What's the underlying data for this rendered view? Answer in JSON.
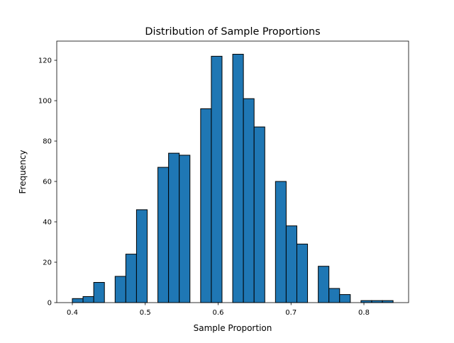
{
  "chart_data": {
    "type": "bar",
    "title": "Distribution of Sample Proportions",
    "xlabel": "Sample Proportion",
    "ylabel": "Frequency",
    "bin_start": 0.4,
    "bin_end": 0.84,
    "values": [
      2,
      3,
      10,
      0,
      13,
      24,
      46,
      0,
      67,
      74,
      73,
      0,
      96,
      122,
      0,
      123,
      101,
      87,
      0,
      60,
      38,
      29,
      0,
      18,
      7,
      4,
      0,
      1,
      1,
      1
    ],
    "xlim": [
      0.3786,
      0.8613
    ],
    "ylim": [
      0,
      129.5
    ],
    "xticks": [
      0.4,
      0.5,
      0.6,
      0.7,
      0.8
    ],
    "xtick_labels": [
      "0.4",
      "0.5",
      "0.6",
      "0.7",
      "0.8"
    ],
    "yticks": [
      0,
      20,
      40,
      60,
      80,
      100,
      120
    ],
    "ytick_labels": [
      "0",
      "20",
      "40",
      "60",
      "80",
      "100",
      "120"
    ],
    "bar_color": "#1f77b4",
    "edge_color": "#000000",
    "grid": false
  }
}
